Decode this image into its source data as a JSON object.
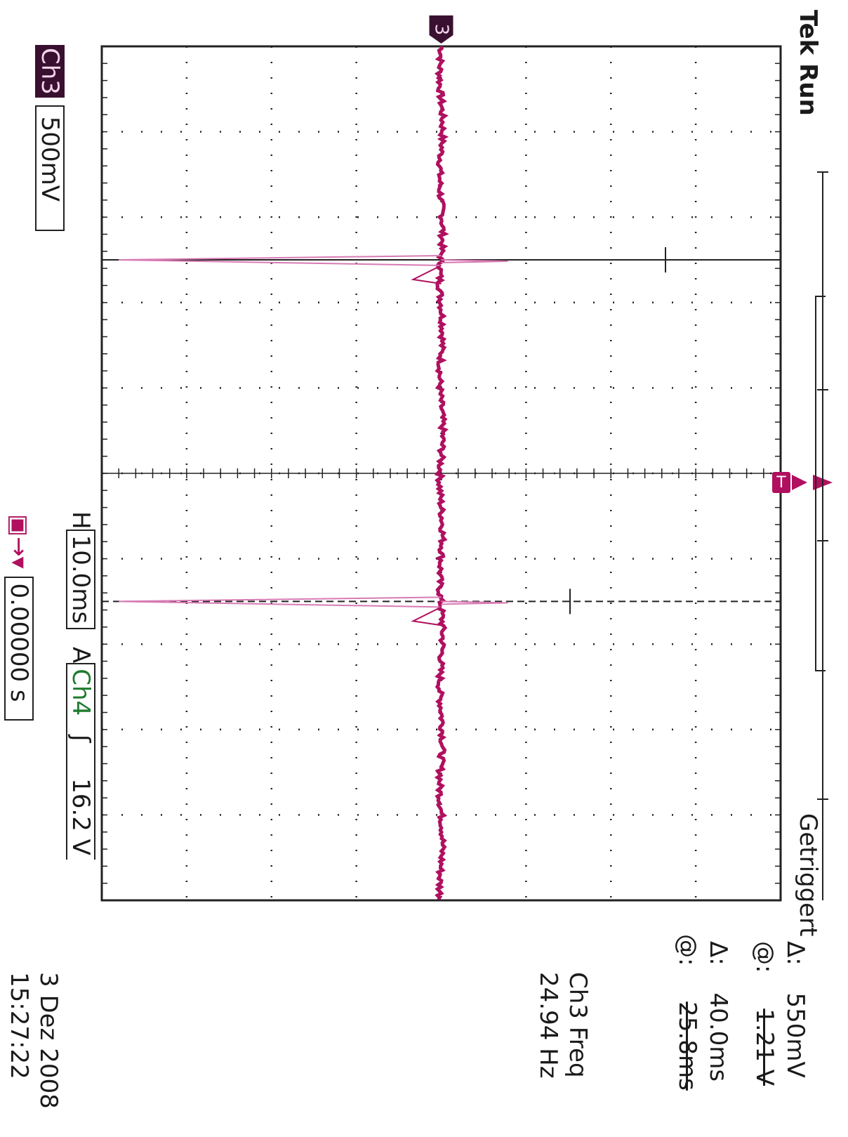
{
  "header": {
    "status": "Tek Run",
    "trigger_state": "Getriggert"
  },
  "channel": {
    "tag": "Ch3",
    "scale": "500mV",
    "marker": "3"
  },
  "horizontal": {
    "prefix": "H",
    "timebase": "10.0ms"
  },
  "trigger": {
    "mode": "A",
    "source": "Ch4",
    "slope_icon": "rising-edge-icon",
    "level": "16.2 V",
    "position": "0.00000 s",
    "marker": "T"
  },
  "cursors": {
    "voltage": {
      "delta": "Δ:",
      "delta_value": "550mV",
      "at": "@:",
      "at_value": "1.21 V"
    },
    "time": {
      "delta": "Δ:",
      "delta_value": "40.0ms",
      "at": "@:",
      "at_value": "25.8ms"
    }
  },
  "measurement": {
    "label": "Ch3 Freq",
    "value": "24.94 Hz"
  },
  "datetime": {
    "date": "3 Dez 2008",
    "time": "15:27:22"
  },
  "colors": {
    "trace": "#b0105f",
    "trace_light": "#d77bb4",
    "grid": "#222222",
    "ch4": "#1e7a2e"
  },
  "chart_data": {
    "type": "line",
    "x_unit": "divisions (10.0ms/div)",
    "y_unit": "divisions (500mV/div)",
    "xlim": [
      0,
      10
    ],
    "ylim": [
      -4,
      4
    ],
    "series": [
      {
        "name": "Ch3",
        "x": [
          0,
          2.45,
          2.5,
          2.55,
          6.45,
          6.5,
          6.55,
          10
        ],
        "y": [
          0,
          0,
          -3.8,
          0,
          0,
          -3.8,
          0,
          0
        ]
      }
    ],
    "grid": true
  }
}
